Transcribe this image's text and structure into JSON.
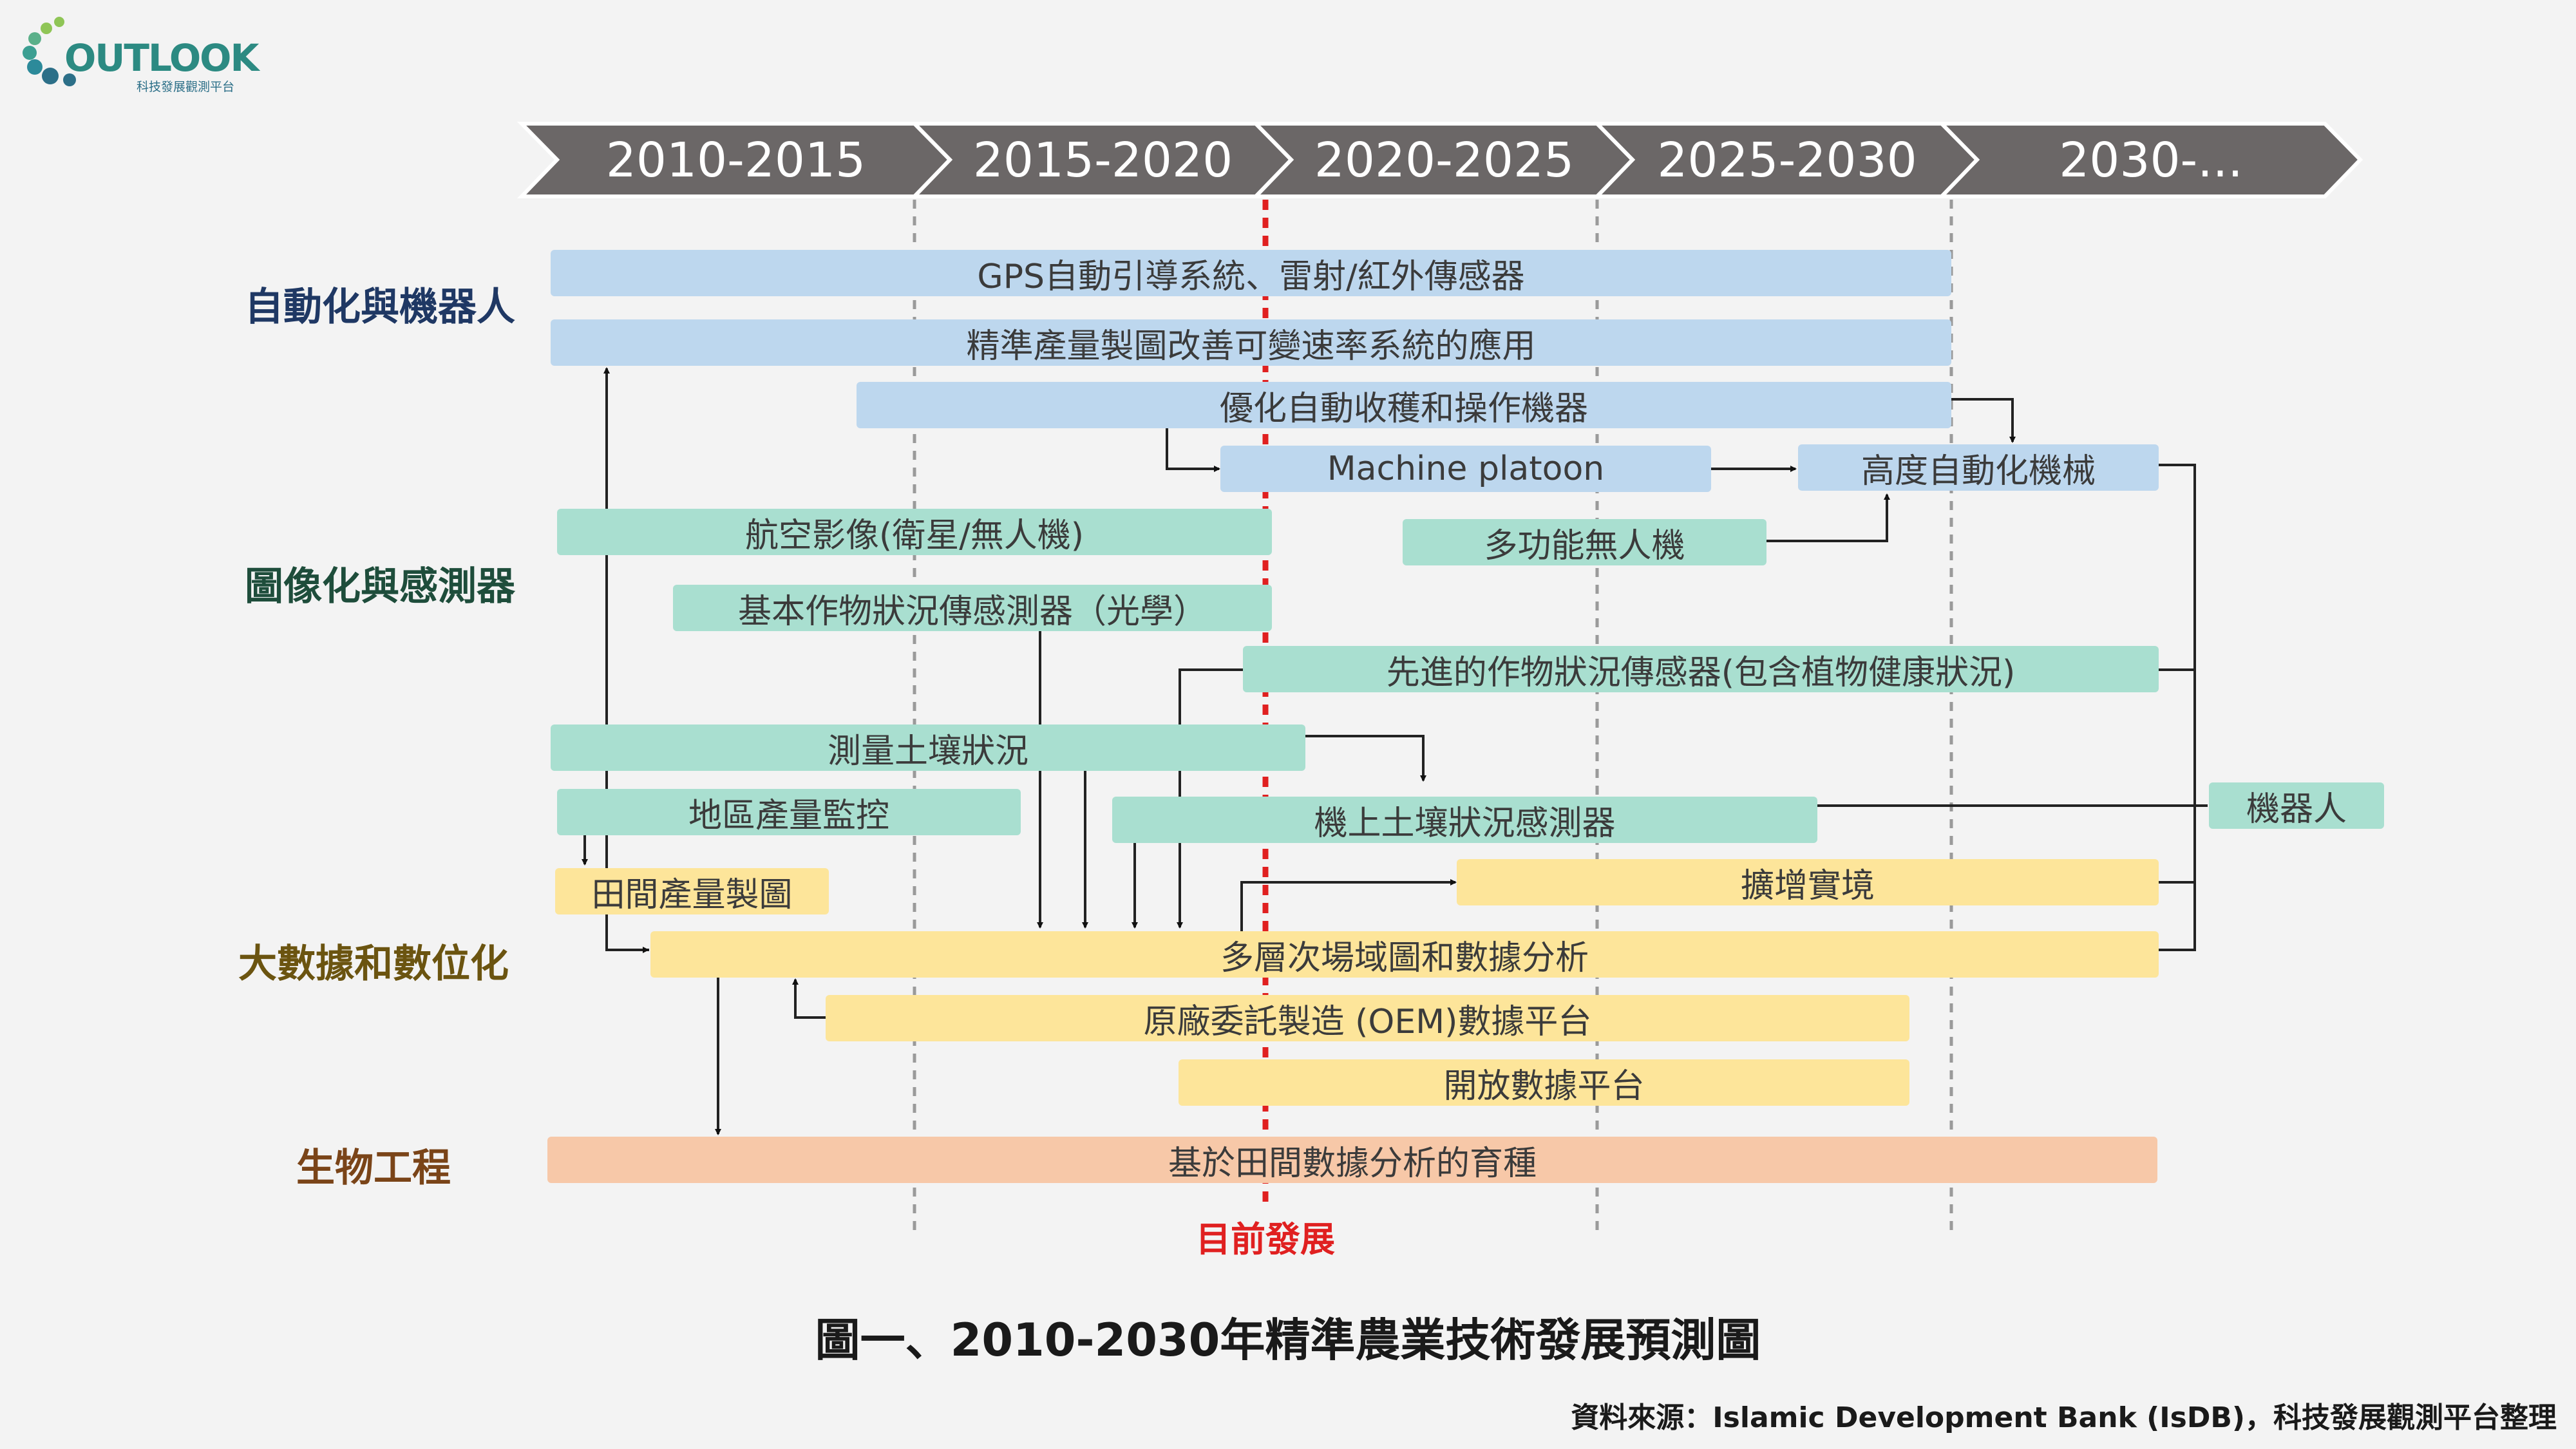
{
  "logo": {
    "word": "OUTLOOK",
    "sub": "科技發展觀測平台"
  },
  "timeline": [
    "2010-2015",
    "2015-2020",
    "2020-2025",
    "2025-2030",
    "2030-..."
  ],
  "categories": [
    {
      "label": "自動化與機器人",
      "color": "#1f3864"
    },
    {
      "label": "圖像化與感測器",
      "color": "#1e4d3b"
    },
    {
      "label": "大數據和數位化",
      "color": "#6b5410"
    },
    {
      "label": "生物工程",
      "color": "#7a4418"
    }
  ],
  "bars": {
    "gps": "GPS自動引導系統、雷射/紅外傳感器",
    "precision_map": "精準產量製圖改善可變速率系統的應用",
    "optimize_harvest": "優化自動收穫和操作機器",
    "machine_platoon": "Machine platoon",
    "high_automation": "高度自動化機械",
    "aerial": "航空影像(衛星/無人機)",
    "multi_drone": "多功能無人機",
    "basic_sensor": "基本作物狀況傳感測器（光學）",
    "advanced_sensor": "先進的作物狀況傳感器(包含植物健康狀況)",
    "soil_measure": "測量土壤狀況",
    "regional_yield": "地區產量監控",
    "onboard_soil": "機上土壤狀況感測器",
    "robot": "機器人",
    "field_yield_map": "田間產量製圖",
    "ar": "擴增實境",
    "multi_layer": "多層次場域圖和數據分析",
    "oem_platform": "原廠委託製造 (OEM)數據平台",
    "open_platform": "開放數據平台",
    "breeding": "基於田間數據分析的育種"
  },
  "now_label": "目前發展",
  "figure_title": "圖一、2010-2030年精準農業技術發展預測圖",
  "source": "資料來源：Islamic Development Bank (IsDB)，科技發展觀測平台整理"
}
